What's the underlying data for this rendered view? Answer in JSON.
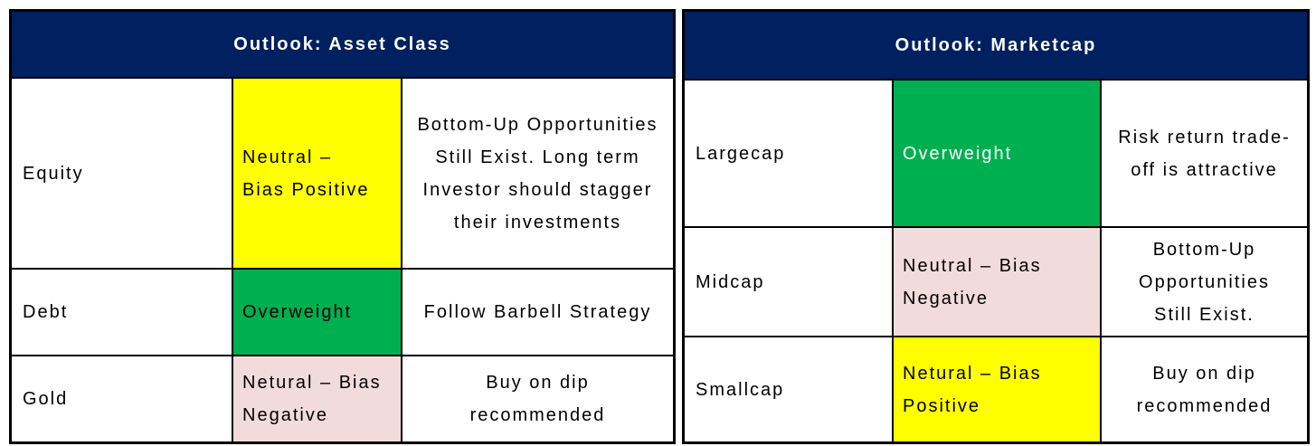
{
  "colors": {
    "header_bg": "#002060",
    "header_text": "#ffffff",
    "neutral_positive": "#ffff00",
    "overweight": "#00b050",
    "neutral_negative": "#f2dcdb",
    "overweight_text": "#ffffff"
  },
  "asset_class": {
    "title": "Outlook: Asset Class",
    "rows": [
      {
        "name": "Equity",
        "rating": "Neutral – Bias Positive",
        "note": "Bottom-Up Opportunities Still Exist. Long term Investor should stagger their investments"
      },
      {
        "name": "Debt",
        "rating": "Overweight",
        "note": "Follow Barbell Strategy"
      },
      {
        "name": "Gold",
        "rating": "Netural – Bias Negative",
        "note": "Buy on dip recommended"
      }
    ]
  },
  "marketcap": {
    "title": "Outlook: Marketcap",
    "rows": [
      {
        "name": "Largecap",
        "rating": "Overweight",
        "note": "Risk return trade-off is attractive"
      },
      {
        "name": "Midcap",
        "rating": "Neutral – Bias Negative",
        "note": "Bottom-Up Opportunities Still Exist."
      },
      {
        "name": "Smallcap",
        "rating": "Netural – Bias Positive",
        "note": "Buy on dip recommended"
      }
    ]
  }
}
